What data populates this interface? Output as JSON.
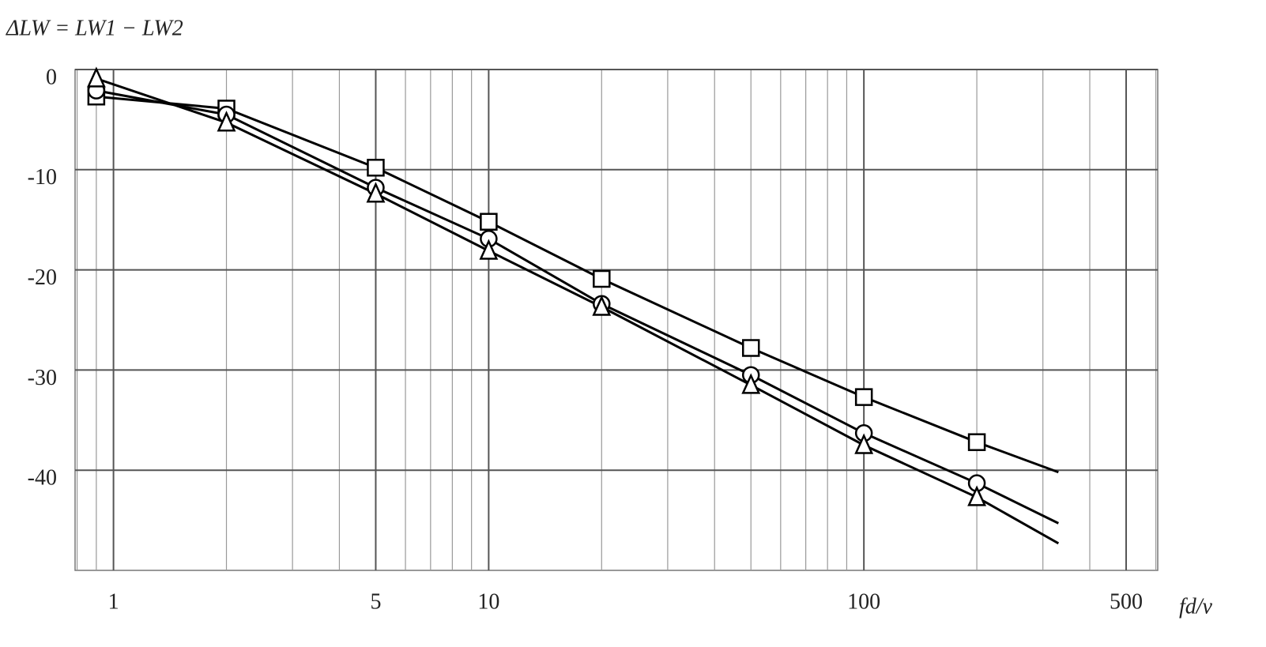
{
  "chart_data": {
    "type": "line",
    "ylabel": "ΔLW = LW1 − LW2",
    "xlabel": "fd/ν",
    "x": [
      0.9,
      2,
      5,
      10,
      20,
      50,
      100,
      200,
      330
    ],
    "series": [
      {
        "marker": "square",
        "color": "#000000",
        "values": [
          -2.7,
          -3.9,
          -9.8,
          -15.2,
          -20.9,
          -27.8,
          -32.7,
          -37.2,
          -40.2
        ]
      },
      {
        "marker": "circle",
        "color": "#000000",
        "values": [
          -2.1,
          -4.5,
          -11.8,
          -16.9,
          -23.4,
          -30.5,
          -36.3,
          -41.3,
          -45.3
        ]
      },
      {
        "marker": "triangle",
        "color": "#000000",
        "values": [
          -0.9,
          -5.3,
          -12.4,
          -18.1,
          -23.7,
          -31.5,
          -37.5,
          -42.7,
          -47.3
        ]
      }
    ],
    "xscale": "log",
    "xlim": [
      0.79,
      607
    ],
    "xticks": [
      1,
      5,
      10,
      100,
      500
    ],
    "ylim": [
      -50,
      0
    ],
    "yticks": [
      0,
      -10,
      -20,
      -30,
      -40
    ],
    "grid": true
  }
}
